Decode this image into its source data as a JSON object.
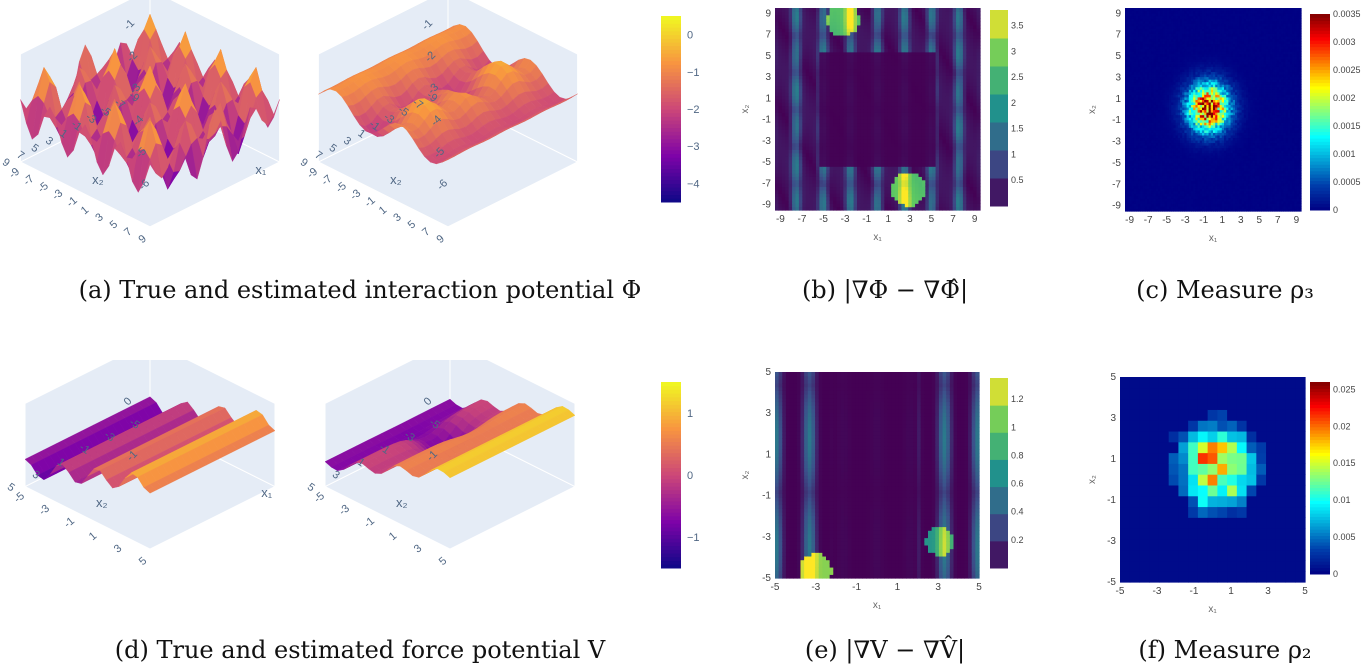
{
  "captions": {
    "a": "(a) True and estimated interaction potential Φ",
    "b": "(b) |∇Φ − ∇Φ̂|",
    "c": "(c) Measure ρ₃",
    "d": "(d) True and estimated force potential V",
    "e": "(e) |∇V − ∇V̂|",
    "f": "(f) Measure ρ₂"
  },
  "chart_data": [
    {
      "id": "a",
      "type": "surface",
      "panels": [
        "true",
        "estimated"
      ],
      "xlabel": "x₁",
      "ylabel": "x₂",
      "x_ticks": [
        "9",
        "7",
        "5",
        "3",
        "1",
        "-1",
        "-3",
        "-5",
        "-7",
        "-9"
      ],
      "y_ticks": [
        "9",
        "7",
        "5",
        "3",
        "1",
        "-1",
        "-3",
        "-5",
        "-7",
        "-9"
      ],
      "z_ticks": [
        "0",
        "-1",
        "-2",
        "-3",
        "-4",
        "-5",
        "-6"
      ],
      "colorbar": {
        "ticks": [
          0,
          -1,
          -2,
          -3,
          -4
        ],
        "range": [
          -4.5,
          0.5
        ],
        "colorscale": "plasma"
      }
    },
    {
      "id": "b",
      "type": "heatmap",
      "xlabel": "x₁",
      "ylabel": "x₂",
      "x_ticks": [
        -9,
        -7,
        -5,
        -3,
        -1,
        1,
        3,
        5,
        7,
        9
      ],
      "y_ticks": [
        -9,
        -7,
        -5,
        -3,
        -1,
        1,
        3,
        5,
        7,
        9
      ],
      "xlim": [
        -9.5,
        9.5
      ],
      "ylim": [
        -9.5,
        9.5
      ],
      "colorbar": {
        "ticks": [
          0.5,
          1,
          1.5,
          2,
          2.5,
          3,
          3.5
        ],
        "range": [
          0,
          3.8
        ],
        "colorscale": "viridis"
      }
    },
    {
      "id": "c",
      "type": "heatmap",
      "xlabel": "x₁",
      "ylabel": "x₂",
      "x_ticks": [
        -9,
        -7,
        -5,
        -3,
        -1,
        1,
        3,
        5,
        7,
        9
      ],
      "y_ticks": [
        -9,
        -7,
        -5,
        -3,
        -1,
        1,
        3,
        5,
        7,
        9
      ],
      "xlim": [
        -9.5,
        9.5
      ],
      "ylim": [
        -9.5,
        9.5
      ],
      "colorbar": {
        "ticks": [
          0,
          0.0005,
          0.001,
          0.0015,
          0.002,
          0.0025,
          0.003,
          0.0035
        ],
        "range": [
          0,
          0.0035
        ],
        "colorscale": "jet"
      }
    },
    {
      "id": "d",
      "type": "surface",
      "panels": [
        "true",
        "estimated"
      ],
      "xlabel": "x₁",
      "ylabel": "x₂",
      "x_ticks": [
        "5",
        "3",
        "1",
        "-1",
        "-3",
        "-5"
      ],
      "y_ticks": [
        "5",
        "3",
        "1",
        "-1",
        "-3",
        "-5"
      ],
      "z_ticks": [
        "1",
        "0",
        "-1"
      ],
      "colorbar": {
        "ticks": [
          1,
          0,
          -1
        ],
        "range": [
          -1.5,
          1.5
        ],
        "colorscale": "plasma"
      }
    },
    {
      "id": "e",
      "type": "heatmap",
      "xlabel": "x₁",
      "ylabel": "x₂",
      "x_ticks": [
        -5,
        -3,
        -1,
        1,
        3,
        5
      ],
      "y_ticks": [
        -5,
        -3,
        -1,
        1,
        3,
        5
      ],
      "xlim": [
        -5,
        5
      ],
      "ylim": [
        -5,
        5
      ],
      "colorbar": {
        "ticks": [
          0.2,
          0.4,
          0.6,
          0.8,
          1,
          1.2
        ],
        "range": [
          0,
          1.35
        ],
        "colorscale": "viridis"
      }
    },
    {
      "id": "f",
      "type": "heatmap",
      "xlabel": "x₁",
      "ylabel": "x₂",
      "x_ticks": [
        -5,
        -3,
        -1,
        1,
        3,
        5
      ],
      "y_ticks": [
        -5,
        -3,
        -1,
        1,
        3,
        5
      ],
      "xlim": [
        -5,
        5
      ],
      "ylim": [
        -5,
        5
      ],
      "colorbar": {
        "ticks": [
          0,
          0.005,
          0.01,
          0.015,
          0.02,
          0.025
        ],
        "range": [
          0,
          0.026
        ],
        "colorscale": "jet"
      }
    }
  ]
}
